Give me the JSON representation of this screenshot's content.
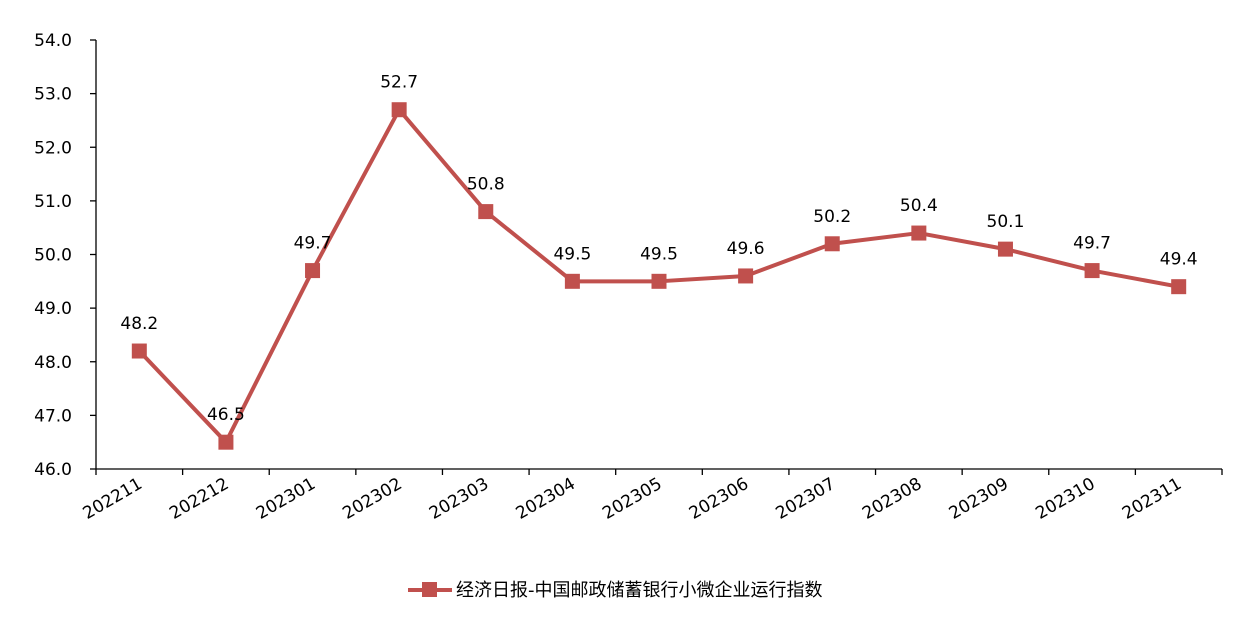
{
  "chart_data": {
    "type": "line",
    "categories": [
      "202211",
      "202212",
      "202301",
      "202302",
      "202303",
      "202304",
      "202305",
      "202306",
      "202307",
      "202308",
      "202309",
      "202310",
      "202311"
    ],
    "series": [
      {
        "name": "经济日报-中国邮政储蓄银行小微企业运行指数",
        "values": [
          48.2,
          46.5,
          49.7,
          52.7,
          50.8,
          49.5,
          49.5,
          49.6,
          50.2,
          50.4,
          50.1,
          49.7,
          49.4
        ],
        "color": "#C0504D",
        "marker": "square"
      }
    ],
    "ylim": [
      46.0,
      54.0
    ],
    "yticks": [
      "46.0",
      "47.0",
      "48.0",
      "49.0",
      "50.0",
      "51.0",
      "52.0",
      "53.0",
      "54.0"
    ],
    "data_labels": [
      "48.2",
      "46.5",
      "49.7",
      "52.7",
      "50.8",
      "49.5",
      "49.5",
      "49.6",
      "50.2",
      "50.4",
      "50.1",
      "49.7",
      "49.4"
    ],
    "grid": false,
    "legend": "bottom-center"
  }
}
